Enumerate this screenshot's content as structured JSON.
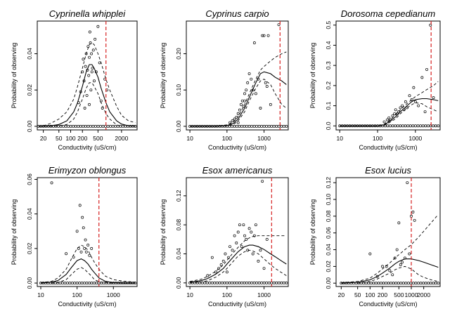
{
  "chart_data": [
    {
      "type": "scatter",
      "title": "Cyprinella whipplei",
      "xlabel": "Conductivity (uS/cm)",
      "ylabel": "Probability of observing",
      "x_scale": "log",
      "xlim": [
        14,
        5000
      ],
      "ylim": [
        -0.002,
        0.058
      ],
      "x_ticks": [
        20,
        50,
        100,
        200,
        500,
        2000
      ],
      "x_tick_labels": [
        "20",
        "50",
        "100",
        "200",
        "500",
        "2000"
      ],
      "y_ticks": [
        0,
        0.02,
        0.04
      ],
      "y_tick_labels": [
        "0.00",
        "0.02",
        "0.04"
      ],
      "threshold_x": 800,
      "fit": {
        "x": [
          15,
          20,
          30,
          50,
          80,
          120,
          150,
          200,
          250,
          300,
          350,
          400,
          500,
          600,
          800,
          1000,
          1500,
          2000,
          3000,
          4500
        ],
        "y": [
          0,
          0,
          0.0002,
          0.001,
          0.003,
          0.008,
          0.013,
          0.022,
          0.03,
          0.034,
          0.034,
          0.032,
          0.027,
          0.021,
          0.013,
          0.008,
          0.003,
          0.0012,
          0.0003,
          0.0001
        ]
      },
      "upper": {
        "x": [
          15,
          20,
          30,
          50,
          80,
          120,
          150,
          200,
          250,
          300,
          350,
          400,
          500,
          600,
          800,
          1000,
          1500,
          2000,
          3000,
          4500
        ],
        "y": [
          0,
          0.0003,
          0.0015,
          0.004,
          0.008,
          0.015,
          0.022,
          0.032,
          0.04,
          0.045,
          0.046,
          0.045,
          0.04,
          0.035,
          0.026,
          0.02,
          0.011,
          0.006,
          0.003,
          0.002
        ]
      },
      "lower": {
        "x": [
          30,
          50,
          80,
          120,
          150,
          200,
          250,
          300,
          350,
          400,
          500,
          600,
          800,
          1000,
          1500,
          2000
        ],
        "y": [
          0,
          0.0002,
          0.001,
          0.004,
          0.008,
          0.015,
          0.021,
          0.024,
          0.024,
          0.022,
          0.018,
          0.013,
          0.007,
          0.004,
          0.0008,
          0
        ]
      },
      "points": {
        "x": [
          160,
          180,
          200,
          210,
          220,
          240,
          250,
          260,
          270,
          280,
          290,
          300,
          310,
          320,
          330,
          340,
          350,
          360,
          380,
          400,
          420,
          450,
          500,
          550,
          600,
          650,
          750,
          850,
          230,
          300
        ],
        "y": [
          0.013,
          0.019,
          0.03,
          0.037,
          0.025,
          0.033,
          0.04,
          0.017,
          0.031,
          0.044,
          0.028,
          0.038,
          0.052,
          0.046,
          0.02,
          0.04,
          0.03,
          0.032,
          0.042,
          0.025,
          0.048,
          0.03,
          0.055,
          0.035,
          0.014,
          0.01,
          0.026,
          0.02,
          0.01,
          0.012
        ]
      },
      "zero_range": [
        15,
        4500
      ]
    },
    {
      "type": "scatter",
      "title": "Cyprinus carpio",
      "xlabel": "Conductivity (uS/cm)",
      "ylabel": "Probability of observing",
      "x_scale": "log",
      "xlim": [
        8,
        4500
      ],
      "ylim": [
        -0.01,
        0.29
      ],
      "x_ticks": [
        10,
        100,
        1000
      ],
      "x_tick_labels": [
        "10",
        "100",
        "1000"
      ],
      "y_ticks": [
        0,
        0.1,
        0.2
      ],
      "y_tick_labels": [
        "0.00",
        "0.10",
        "0.20"
      ],
      "threshold_x": 2700,
      "fit": {
        "x": [
          10,
          50,
          100,
          150,
          200,
          300,
          400,
          600,
          800,
          1000,
          1500,
          2000,
          3000,
          4000
        ],
        "y": [
          0,
          0,
          0.002,
          0.008,
          0.02,
          0.05,
          0.08,
          0.12,
          0.145,
          0.15,
          0.145,
          0.135,
          0.125,
          0.115
        ]
      },
      "upper": {
        "x": [
          10,
          50,
          100,
          150,
          200,
          300,
          400,
          600,
          800,
          1000,
          1500,
          2000,
          3000,
          4000
        ],
        "y": [
          0,
          0,
          0.004,
          0.012,
          0.026,
          0.06,
          0.09,
          0.13,
          0.155,
          0.165,
          0.18,
          0.19,
          0.2,
          0.205
        ]
      },
      "lower": {
        "x": [
          10,
          50,
          100,
          150,
          200,
          300,
          400,
          600,
          800,
          1000,
          1500,
          2000,
          3000,
          4000
        ],
        "y": [
          0,
          0,
          0.001,
          0.005,
          0.015,
          0.04,
          0.07,
          0.105,
          0.125,
          0.13,
          0.115,
          0.09,
          0.06,
          0.05
        ]
      },
      "points": {
        "x": [
          120,
          140,
          160,
          180,
          200,
          220,
          240,
          260,
          280,
          300,
          330,
          360,
          400,
          450,
          500,
          550,
          600,
          700,
          800,
          900,
          1000,
          1100,
          1300,
          1500,
          2500,
          200,
          300,
          1200
        ],
        "y": [
          0.01,
          0.015,
          0.02,
          0.025,
          0.035,
          0.045,
          0.06,
          0.07,
          0.055,
          0.09,
          0.1,
          0.12,
          0.145,
          0.13,
          0.1,
          0.23,
          0.09,
          0.13,
          0.05,
          0.25,
          0.25,
          0.12,
          0.25,
          0.06,
          0.28,
          0.01,
          0.07,
          0.11
        ]
      },
      "zero_range": [
        10,
        4000
      ]
    },
    {
      "type": "scatter",
      "title": "Dorosoma cepedianum",
      "xlabel": "Conductivity (uS/cm)",
      "ylabel": "Probability of observing",
      "x_scale": "log",
      "xlim": [
        8,
        4500
      ],
      "ylim": [
        -0.02,
        0.52
      ],
      "x_ticks": [
        10,
        100,
        1000
      ],
      "x_tick_labels": [
        "10",
        "100",
        "1000"
      ],
      "y_ticks": [
        0,
        0.1,
        0.2,
        0.3,
        0.4,
        0.5
      ],
      "y_tick_labels": [
        "0.0",
        "0.1",
        "0.2",
        "0.3",
        "0.4",
        "0.5"
      ],
      "threshold_x": 2600,
      "fit": {
        "x": [
          10,
          100,
          150,
          200,
          300,
          400,
          600,
          800,
          1000,
          1500,
          2000,
          3000,
          4000
        ],
        "y": [
          0,
          0,
          0.005,
          0.02,
          0.045,
          0.07,
          0.1,
          0.12,
          0.13,
          0.135,
          0.135,
          0.13,
          0.125
        ]
      },
      "upper": {
        "x": [
          10,
          100,
          150,
          200,
          300,
          400,
          600,
          800,
          1000,
          1500,
          2000,
          3000,
          4000
        ],
        "y": [
          0,
          0,
          0.008,
          0.025,
          0.055,
          0.08,
          0.11,
          0.13,
          0.145,
          0.165,
          0.18,
          0.2,
          0.22
        ]
      },
      "lower": {
        "x": [
          10,
          100,
          150,
          200,
          300,
          400,
          600,
          800,
          1000,
          1500,
          2000,
          3000,
          4000
        ],
        "y": [
          0,
          0,
          0.003,
          0.015,
          0.035,
          0.06,
          0.09,
          0.105,
          0.115,
          0.11,
          0.095,
          0.08,
          0.07
        ]
      },
      "points": {
        "x": [
          150,
          180,
          200,
          220,
          250,
          280,
          300,
          330,
          360,
          400,
          450,
          500,
          550,
          600,
          700,
          800,
          900,
          1000,
          1200,
          1500,
          1800,
          2000,
          2500,
          3000
        ],
        "y": [
          0.02,
          0.03,
          0.04,
          0.03,
          0.05,
          0.06,
          0.08,
          0.06,
          0.07,
          0.09,
          0.1,
          0.08,
          0.12,
          0.09,
          0.15,
          0.13,
          0.19,
          0.12,
          0.1,
          0.24,
          0.07,
          0.28,
          0.5,
          0.14
        ]
      },
      "zero_range": [
        10,
        4000
      ]
    },
    {
      "type": "scatter",
      "title": "Erimyzon oblongus",
      "xlabel": "Conductivity (uS/cm)",
      "ylabel": "Probability of observing",
      "x_scale": "log",
      "xlim": [
        8,
        4500
      ],
      "ylim": [
        -0.002,
        0.061
      ],
      "x_ticks": [
        10,
        100,
        1000
      ],
      "x_tick_labels": [
        "10",
        "100",
        "1000"
      ],
      "y_ticks": [
        0,
        0.02,
        0.04,
        0.06
      ],
      "y_tick_labels": [
        "0.00",
        "0.02",
        "0.04",
        "0.06"
      ],
      "threshold_x": 400,
      "fit": {
        "x": [
          10,
          20,
          30,
          50,
          70,
          100,
          130,
          160,
          200,
          250,
          300,
          400,
          600,
          1000,
          2000,
          4000
        ],
        "y": [
          0,
          0.0005,
          0.0015,
          0.005,
          0.009,
          0.013,
          0.014,
          0.013,
          0.011,
          0.008,
          0.006,
          0.003,
          0.001,
          0.0002,
          0,
          0
        ]
      },
      "upper": {
        "x": [
          10,
          20,
          30,
          50,
          70,
          100,
          130,
          160,
          200,
          250,
          300,
          400,
          600,
          1000,
          2000,
          4000
        ],
        "y": [
          0.0002,
          0.001,
          0.003,
          0.008,
          0.014,
          0.02,
          0.022,
          0.021,
          0.019,
          0.015,
          0.012,
          0.008,
          0.004,
          0.002,
          0.001,
          0.0005
        ]
      },
      "lower": {
        "x": [
          20,
          30,
          50,
          70,
          100,
          130,
          160,
          200,
          250,
          300,
          400,
          600,
          1000
        ],
        "y": [
          0,
          0.0003,
          0.002,
          0.005,
          0.008,
          0.009,
          0.008,
          0.006,
          0.004,
          0.002,
          0.0008,
          0.0002,
          0
        ]
      },
      "points": {
        "x": [
          20,
          50,
          80,
          100,
          110,
          120,
          130,
          140,
          150,
          160,
          170,
          180,
          200,
          220,
          250
        ],
        "y": [
          0.058,
          0.017,
          0.015,
          0.03,
          0.02,
          0.045,
          0.018,
          0.038,
          0.032,
          0.02,
          0.025,
          0.018,
          0.022,
          0.016,
          0.02
        ]
      },
      "zero_range": [
        10,
        4000
      ]
    },
    {
      "type": "scatter",
      "title": "Esox americanus",
      "xlabel": "Conductivity (uS/cm)",
      "ylabel": "Probability of observing",
      "x_scale": "log",
      "xlim": [
        8,
        4500
      ],
      "ylim": [
        -0.005,
        0.145
      ],
      "x_ticks": [
        10,
        100,
        1000
      ],
      "x_tick_labels": [
        "10",
        "100",
        "1000"
      ],
      "y_ticks": [
        0,
        0.04,
        0.08,
        0.12
      ],
      "y_tick_labels": [
        "0.00",
        "0.04",
        "0.08",
        "0.12"
      ],
      "threshold_x": 1600,
      "fit": {
        "x": [
          10,
          20,
          30,
          50,
          80,
          100,
          150,
          200,
          300,
          400,
          500,
          700,
          1000,
          1500,
          2000,
          3000,
          4000
        ],
        "y": [
          0.001,
          0.003,
          0.006,
          0.012,
          0.02,
          0.026,
          0.036,
          0.043,
          0.05,
          0.052,
          0.052,
          0.05,
          0.046,
          0.04,
          0.036,
          0.03,
          0.026
        ]
      },
      "upper": {
        "x": [
          10,
          20,
          30,
          50,
          80,
          100,
          150,
          200,
          300,
          400,
          500,
          700,
          1000,
          1500,
          2000,
          3000,
          4000
        ],
        "y": [
          0.002,
          0.005,
          0.009,
          0.016,
          0.025,
          0.031,
          0.042,
          0.049,
          0.058,
          0.062,
          0.064,
          0.065,
          0.065,
          0.065,
          0.065,
          0.065,
          0.065
        ]
      },
      "lower": {
        "x": [
          10,
          20,
          30,
          50,
          80,
          100,
          150,
          200,
          300,
          400,
          500,
          700,
          1000,
          1500,
          2000,
          3000,
          4000
        ],
        "y": [
          0,
          0.001,
          0.003,
          0.008,
          0.015,
          0.02,
          0.03,
          0.037,
          0.043,
          0.045,
          0.044,
          0.04,
          0.033,
          0.025,
          0.02,
          0.014,
          0.01
        ]
      },
      "points": {
        "x": [
          30,
          40,
          50,
          60,
          70,
          80,
          90,
          100,
          110,
          120,
          140,
          160,
          180,
          200,
          220,
          250,
          280,
          300,
          330,
          360,
          400,
          450,
          500,
          550,
          600,
          700,
          800,
          900,
          1000,
          1200
        ],
        "y": [
          0.01,
          0.035,
          0.015,
          0.02,
          0.025,
          0.03,
          0.04,
          0.015,
          0.035,
          0.05,
          0.045,
          0.065,
          0.055,
          0.07,
          0.08,
          0.05,
          0.08,
          0.065,
          0.06,
          0.045,
          0.075,
          0.07,
          0.04,
          0.065,
          0.08,
          0.03,
          0.045,
          0.14,
          0.02,
          0.06
        ]
      },
      "zero_range": [
        10,
        4000
      ]
    },
    {
      "type": "scatter",
      "title": "Esox lucius",
      "xlabel": "Conductivity (uS/cm)",
      "ylabel": "Probability of observing",
      "x_scale": "log",
      "xlim": [
        15,
        5000
      ],
      "ylim": [
        -0.004,
        0.126
      ],
      "x_ticks": [
        20,
        50,
        100,
        200,
        500,
        1000,
        2000
      ],
      "x_tick_labels": [
        "20",
        "50",
        "100",
        "200",
        "500",
        "1000",
        "2000"
      ],
      "y_ticks": [
        0,
        0.02,
        0.04,
        0.06,
        0.08,
        0.1,
        0.12
      ],
      "y_tick_labels": [
        "0.00",
        "0.02",
        "0.04",
        "0.06",
        "0.08",
        "0.10",
        "0.12"
      ],
      "threshold_x": 1000,
      "fit": {
        "x": [
          20,
          50,
          100,
          150,
          200,
          300,
          400,
          500,
          700,
          1000,
          1500,
          2000,
          3000,
          4500
        ],
        "y": [
          0,
          0.001,
          0.004,
          0.008,
          0.012,
          0.018,
          0.023,
          0.026,
          0.029,
          0.029,
          0.027,
          0.025,
          0.022,
          0.019
        ]
      },
      "upper": {
        "x": [
          20,
          50,
          100,
          150,
          200,
          300,
          400,
          500,
          700,
          1000,
          1500,
          2000,
          3000,
          4500
        ],
        "y": [
          0.0005,
          0.002,
          0.006,
          0.012,
          0.017,
          0.024,
          0.03,
          0.034,
          0.04,
          0.046,
          0.055,
          0.062,
          0.072,
          0.082
        ]
      },
      "lower": {
        "x": [
          50,
          100,
          150,
          200,
          300,
          400,
          500,
          700,
          1000,
          1500,
          2000,
          3000,
          4500
        ],
        "y": [
          0,
          0.002,
          0.005,
          0.008,
          0.012,
          0.016,
          0.018,
          0.02,
          0.017,
          0.01,
          0.007,
          0.004,
          0.002
        ]
      },
      "points": {
        "x": [
          100,
          150,
          200,
          250,
          300,
          350,
          400,
          450,
          500,
          550,
          600,
          700,
          800,
          900,
          1000,
          1100,
          1200
        ],
        "y": [
          0.035,
          0.008,
          0.02,
          0.02,
          0.015,
          0.01,
          0.03,
          0.04,
          0.072,
          0.022,
          0.025,
          0.03,
          0.12,
          0.035,
          0.08,
          0.085,
          0.075
        ]
      },
      "zero_range": [
        20,
        4500
      ]
    }
  ]
}
